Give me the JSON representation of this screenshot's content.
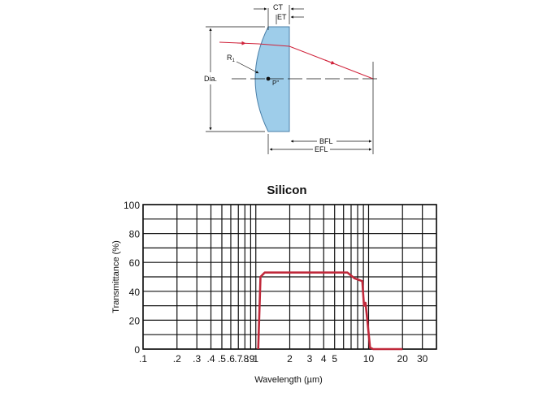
{
  "lens_diagram": {
    "labels": {
      "ct": "CT",
      "et": "ET",
      "r1": "R",
      "r1_sub": "1",
      "dia": "Dia.",
      "p": "P\"",
      "bfl": "BFL",
      "efl": "EFL"
    },
    "colors": {
      "lens_fill": "#9ecdea",
      "lens_edge": "#4a7fa8",
      "ray": "#d0223a"
    }
  },
  "chart_data": {
    "type": "line",
    "title": "Silicon",
    "xlabel": "Wavelength (µm)",
    "ylabel": "Transmittance (%)",
    "x_scale": "log",
    "xlim": [
      0.1,
      40
    ],
    "ylim": [
      0,
      100
    ],
    "grid": true,
    "x_tick_labels": [
      {
        "value": 0.1,
        "label": ".1"
      },
      {
        "value": 0.2,
        "label": ".2"
      },
      {
        "value": 0.3,
        "label": ".3"
      },
      {
        "value": 0.4,
        "label": ".4"
      },
      {
        "value": 0.5,
        "label": ".5"
      },
      {
        "value": 0.6,
        "label": ".6"
      },
      {
        "value": 0.7,
        "label": ".7"
      },
      {
        "value": 0.8,
        "label": ".8"
      },
      {
        "value": 0.9,
        "label": ".9"
      },
      {
        "value": 1,
        "label": "1"
      },
      {
        "value": 2,
        "label": "2"
      },
      {
        "value": 3,
        "label": "3"
      },
      {
        "value": 4,
        "label": "4"
      },
      {
        "value": 5,
        "label": "5"
      },
      {
        "value": 10,
        "label": "10"
      },
      {
        "value": 20,
        "label": "20"
      },
      {
        "value": 30,
        "label": "30"
      }
    ],
    "x_gridlines": [
      0.1,
      0.2,
      0.3,
      0.4,
      0.5,
      0.6,
      0.7,
      0.8,
      0.9,
      1,
      2,
      3,
      4,
      5,
      6,
      7,
      8,
      9,
      10,
      20,
      30,
      40
    ],
    "y_ticks": [
      0,
      20,
      40,
      60,
      80,
      100
    ],
    "y_gridlines": [
      0,
      10,
      20,
      30,
      40,
      50,
      60,
      70,
      80,
      90,
      100
    ],
    "series": [
      {
        "color": "#c0283a",
        "x": [
          1.05,
          1.1,
          1.2,
          1.5,
          3,
          6.5,
          7.5,
          8.8,
          9.1,
          9.4,
          9.8,
          10.3,
          11,
          20
        ],
        "y": [
          0,
          50,
          53,
          53,
          53,
          53,
          49,
          47,
          30,
          32,
          18,
          1,
          0,
          0
        ]
      }
    ]
  }
}
